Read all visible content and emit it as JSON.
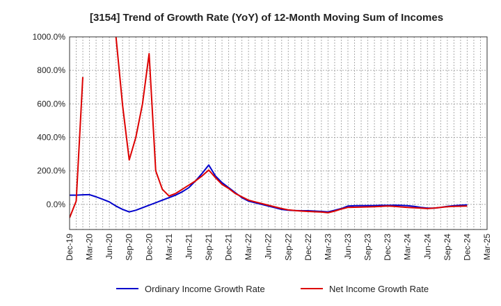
{
  "chart_data": {
    "type": "line",
    "title": "[3154]  Trend of Growth Rate (YoY) of 12-Month Moving Sum of Incomes",
    "xlabel": "",
    "ylabel": "",
    "x_ticks": [
      "Dec-19",
      "Mar-20",
      "Jun-20",
      "Sep-20",
      "Dec-20",
      "Mar-21",
      "Jun-21",
      "Sep-21",
      "Dec-21",
      "Mar-22",
      "Jun-22",
      "Sep-22",
      "Dec-22",
      "Mar-23",
      "Jun-23",
      "Sep-23",
      "Dec-23",
      "Mar-24",
      "Jun-24",
      "Sep-24",
      "Dec-24",
      "Mar-25"
    ],
    "y_ticks": [
      "0.0%",
      "200.0%",
      "400.0%",
      "600.0%",
      "800.0%",
      "1000.0%"
    ],
    "y_tick_values": [
      0,
      200,
      400,
      600,
      800,
      1000
    ],
    "ylim": [
      -150,
      1000
    ],
    "grid": true,
    "legend_position": "bottom",
    "series": [
      {
        "name": "Ordinary Income Growth Rate",
        "color": "#0000cc",
        "points": [
          [
            "2019-12",
            55
          ],
          [
            "2020-01",
            55
          ],
          [
            "2020-02",
            57
          ],
          [
            "2020-03",
            58
          ],
          [
            "2020-04",
            45
          ],
          [
            "2020-05",
            30
          ],
          [
            "2020-06",
            15
          ],
          [
            "2020-07",
            -10
          ],
          [
            "2020-08",
            -30
          ],
          [
            "2020-09",
            -45
          ],
          [
            "2020-10",
            -35
          ],
          [
            "2020-11",
            -20
          ],
          [
            "2020-12",
            -5
          ],
          [
            "2021-01",
            10
          ],
          [
            "2021-02",
            25
          ],
          [
            "2021-03",
            40
          ],
          [
            "2021-04",
            55
          ],
          [
            "2021-05",
            75
          ],
          [
            "2021-06",
            100
          ],
          [
            "2021-07",
            140
          ],
          [
            "2021-08",
            185
          ],
          [
            "2021-09",
            235
          ],
          [
            "2021-10",
            170
          ],
          [
            "2021-11",
            130
          ],
          [
            "2021-12",
            100
          ],
          [
            "2022-01",
            70
          ],
          [
            "2022-02",
            40
          ],
          [
            "2022-03",
            20
          ],
          [
            "2022-04",
            10
          ],
          [
            "2022-05",
            0
          ],
          [
            "2022-06",
            -10
          ],
          [
            "2022-07",
            -20
          ],
          [
            "2022-08",
            -30
          ],
          [
            "2022-09",
            -35
          ],
          [
            "2022-10",
            -37
          ],
          [
            "2022-11",
            -38
          ],
          [
            "2022-12",
            -38
          ],
          [
            "2023-01",
            -40
          ],
          [
            "2023-02",
            -42
          ],
          [
            "2023-03",
            -45
          ],
          [
            "2023-04",
            -35
          ],
          [
            "2023-05",
            -25
          ],
          [
            "2023-06",
            -10
          ],
          [
            "2023-07",
            -8
          ],
          [
            "2023-08",
            -8
          ],
          [
            "2023-09",
            -7
          ],
          [
            "2023-10",
            -7
          ],
          [
            "2023-11",
            -6
          ],
          [
            "2023-12",
            -6
          ],
          [
            "2024-01",
            -5
          ],
          [
            "2024-02",
            -6
          ],
          [
            "2024-03",
            -8
          ],
          [
            "2024-04",
            -12
          ],
          [
            "2024-05",
            -18
          ],
          [
            "2024-06",
            -22
          ],
          [
            "2024-07",
            -22
          ],
          [
            "2024-08",
            -18
          ],
          [
            "2024-09",
            -12
          ],
          [
            "2024-10",
            -8
          ],
          [
            "2024-11",
            -5
          ],
          [
            "2024-12",
            -3
          ]
        ]
      },
      {
        "name": "Net Income Growth Rate",
        "color": "#dd0000",
        "points": [
          [
            "2019-12",
            -80
          ],
          [
            "2020-01",
            20
          ],
          [
            "2020-02",
            760
          ],
          null,
          null,
          null,
          [
            "2020-07",
            1000
          ],
          [
            "2020-08",
            590
          ],
          [
            "2020-09",
            265
          ],
          [
            "2020-10",
            400
          ],
          [
            "2020-11",
            600
          ],
          [
            "2020-12",
            900
          ],
          [
            "2021-01",
            200
          ],
          [
            "2021-02",
            90
          ],
          [
            "2021-03",
            50
          ],
          [
            "2021-04",
            65
          ],
          [
            "2021-05",
            90
          ],
          [
            "2021-06",
            115
          ],
          [
            "2021-07",
            140
          ],
          [
            "2021-08",
            170
          ],
          [
            "2021-09",
            205
          ],
          [
            "2021-10",
            160
          ],
          [
            "2021-11",
            120
          ],
          [
            "2021-12",
            95
          ],
          [
            "2022-01",
            65
          ],
          [
            "2022-02",
            45
          ],
          [
            "2022-03",
            25
          ],
          [
            "2022-04",
            15
          ],
          [
            "2022-05",
            5
          ],
          [
            "2022-06",
            -5
          ],
          [
            "2022-07",
            -15
          ],
          [
            "2022-08",
            -25
          ],
          [
            "2022-09",
            -33
          ],
          [
            "2022-10",
            -37
          ],
          [
            "2022-11",
            -40
          ],
          [
            "2022-12",
            -42
          ],
          [
            "2023-01",
            -44
          ],
          [
            "2023-02",
            -46
          ],
          [
            "2023-03",
            -50
          ],
          [
            "2023-04",
            -40
          ],
          [
            "2023-05",
            -28
          ],
          [
            "2023-06",
            -18
          ],
          [
            "2023-07",
            -17
          ],
          [
            "2023-08",
            -16
          ],
          [
            "2023-09",
            -15
          ],
          [
            "2023-10",
            -14
          ],
          [
            "2023-11",
            -12
          ],
          [
            "2023-12",
            -10
          ],
          [
            "2024-01",
            -12
          ],
          [
            "2024-02",
            -15
          ],
          [
            "2024-03",
            -18
          ],
          [
            "2024-04",
            -20
          ],
          [
            "2024-05",
            -22
          ],
          [
            "2024-06",
            -25
          ],
          [
            "2024-07",
            -22
          ],
          [
            "2024-08",
            -18
          ],
          [
            "2024-09",
            -14
          ],
          [
            "2024-10",
            -12
          ],
          [
            "2024-11",
            -11
          ],
          [
            "2024-12",
            -10
          ]
        ]
      }
    ]
  }
}
